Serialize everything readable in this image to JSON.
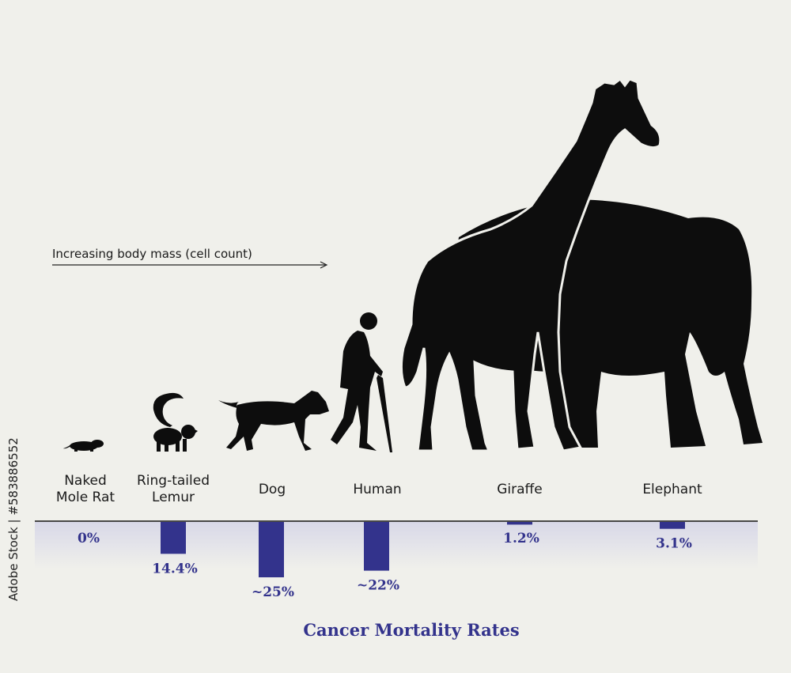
{
  "mass_arrow_label": "Increasing body mass (cell count)",
  "watermark": "Adobe Stock | #583886552",
  "colors": {
    "bar": "#33338c",
    "background": "#f0f0eb",
    "silhouette": "#0d0d0d"
  },
  "chart_data": {
    "type": "bar",
    "title": "Cancer Mortality Rates",
    "categories": [
      "Naked\nMole Rat",
      "Ring-tailed\nLemur",
      "Dog",
      "Human",
      "Giraffe",
      "Elephant"
    ],
    "values": [
      0,
      14.4,
      25,
      22,
      1.2,
      3.1
    ],
    "value_labels": [
      "0%",
      "14.4%",
      "~25%",
      "~22%",
      "1.2%",
      "3.1%"
    ],
    "orientation": "downward",
    "ylim": [
      0,
      25
    ],
    "grid": false,
    "legend": "none",
    "xlabel": "",
    "ylabel": ""
  }
}
